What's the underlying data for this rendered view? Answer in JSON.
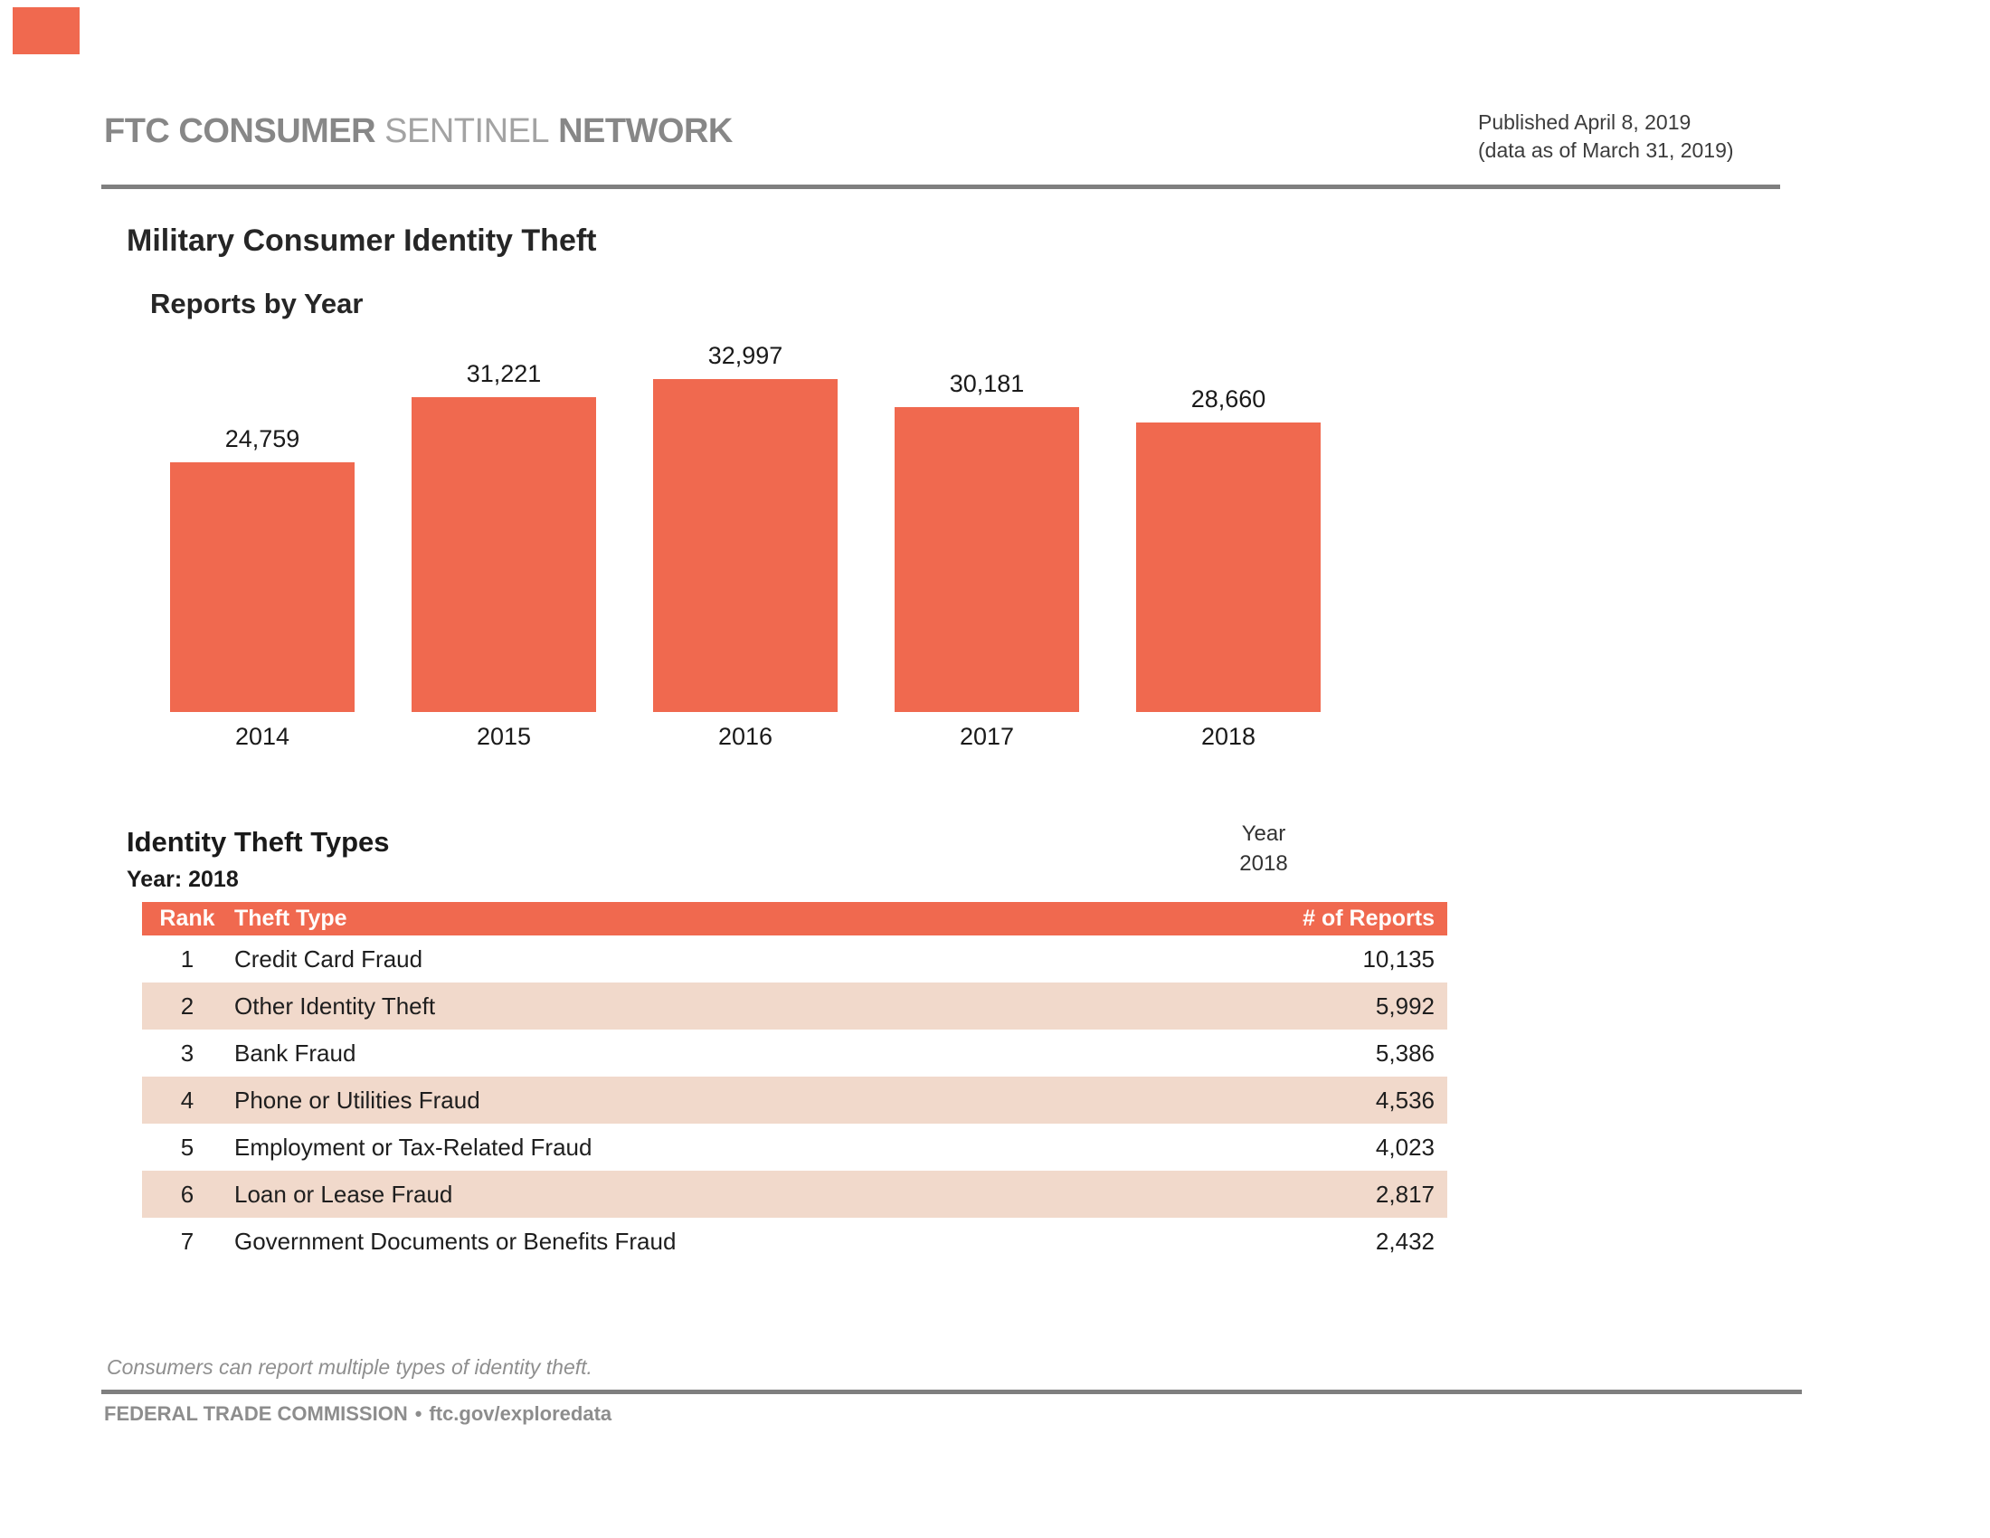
{
  "brand": {
    "part1": "FTC CONSUMER",
    "part2": "SENTINEL",
    "part3": "NETWORK",
    "square_color": "#F0694F"
  },
  "published": {
    "line1": "Published April 8, 2019",
    "line2": "(data as of March 31, 2019)"
  },
  "report": {
    "title": "Military Consumer Identity Theft"
  },
  "chart_data": {
    "type": "bar",
    "title": "Reports by Year",
    "categories": [
      "2014",
      "2015",
      "2016",
      "2017",
      "2018"
    ],
    "values": [
      24759,
      31221,
      32997,
      30181,
      28660
    ],
    "value_labels": [
      "24,759",
      "31,221",
      "32,997",
      "30,181",
      "28,660"
    ],
    "xlabel": "",
    "ylabel": "",
    "ylim": [
      0,
      35000
    ],
    "grid": false,
    "legend": "none",
    "axes_hidden": true,
    "bar_color": "#F0694F"
  },
  "theft_types": {
    "title": "Identity Theft Types",
    "subtitle": "Year: 2018",
    "year_filter": {
      "label": "Year",
      "value": "2018"
    },
    "table": {
      "columns": [
        "Rank",
        "Theft Type",
        "# of Reports"
      ],
      "header_bg": "#F0694F",
      "alt_row_bg": "#F1D9CB",
      "rows": [
        {
          "rank": "1",
          "type": "Credit Card Fraud",
          "reports": "10,135"
        },
        {
          "rank": "2",
          "type": "Other Identity Theft",
          "reports": "5,992"
        },
        {
          "rank": "3",
          "type": "Bank Fraud",
          "reports": "5,386"
        },
        {
          "rank": "4",
          "type": "Phone or Utilities Fraud",
          "reports": "4,536"
        },
        {
          "rank": "5",
          "type": "Employment or Tax-Related Fraud",
          "reports": "4,023"
        },
        {
          "rank": "6",
          "type": "Loan or Lease Fraud",
          "reports": "2,817"
        },
        {
          "rank": "7",
          "type": "Government Documents or Benefits Fraud",
          "reports": "2,432"
        }
      ]
    }
  },
  "footnote": "Consumers can report multiple types of identity theft.",
  "footer": {
    "org": "FEDERAL TRADE COMMISSION",
    "separator": "•",
    "link": "ftc.gov/exploredata"
  }
}
